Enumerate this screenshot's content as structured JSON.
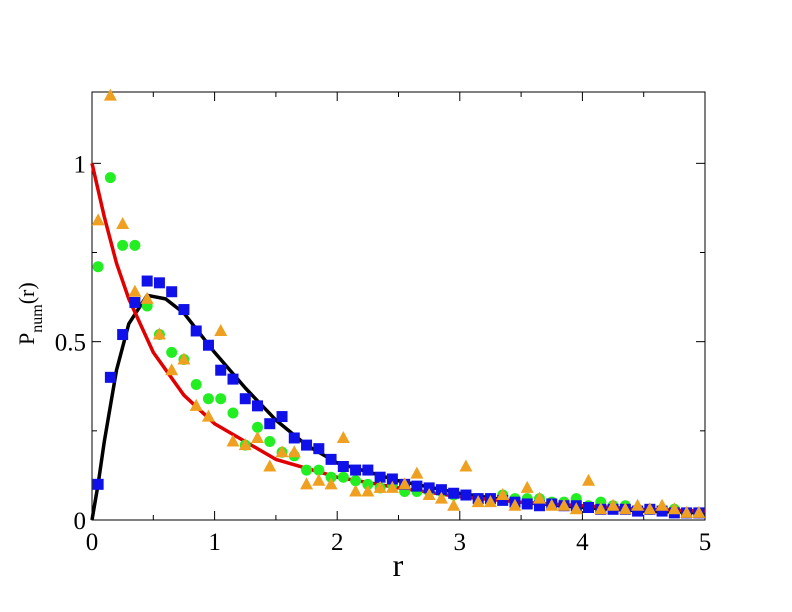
{
  "chart_data": {
    "type": "scatter",
    "xlabel": "r",
    "ylabel": {
      "main": "P",
      "sub": "num",
      "suffix": "(r)"
    },
    "xlim": [
      0,
      5
    ],
    "ylim": [
      0,
      1.2
    ],
    "xticks": [
      0,
      1,
      2,
      3,
      4,
      5
    ],
    "yticks": [
      0,
      0.5,
      1
    ],
    "xticks_minor": [
      0.5,
      1.5,
      2.5,
      3.5,
      4.5
    ],
    "yticks_minor": [
      0.25,
      0.75
    ],
    "series": [
      {
        "marker": "line",
        "color": "#000000",
        "x": [
          0,
          0.05,
          0.1,
          0.2,
          0.3,
          0.45,
          0.6,
          0.75,
          1,
          1.25,
          1.5,
          1.75,
          2,
          2.5,
          3,
          3.5,
          4,
          4.5,
          5
        ],
        "values": [
          0,
          0.1,
          0.22,
          0.42,
          0.55,
          0.63,
          0.62,
          0.58,
          0.47,
          0.37,
          0.28,
          0.21,
          0.16,
          0.11,
          0.075,
          0.05,
          0.035,
          0.025,
          0.02
        ]
      },
      {
        "marker": "line",
        "color": "#e00000",
        "x": [
          0,
          0.1,
          0.2,
          0.3,
          0.5,
          0.75,
          1,
          1.5,
          2,
          2.5,
          3,
          3.5,
          4,
          4.5,
          5
        ],
        "values": [
          1,
          0.85,
          0.72,
          0.62,
          0.47,
          0.35,
          0.27,
          0.17,
          0.12,
          0.09,
          0.065,
          0.05,
          0.04,
          0.03,
          0.025
        ]
      },
      {
        "marker": "circle",
        "color": "#22ee22",
        "x": [
          0.05,
          0.15,
          0.25,
          0.35,
          0.45,
          0.55,
          0.65,
          0.75,
          0.85,
          0.95,
          1.05,
          1.15,
          1.25,
          1.35,
          1.45,
          1.55,
          1.65,
          1.75,
          1.85,
          1.95,
          2.05,
          2.15,
          2.25,
          2.35,
          2.45,
          2.55,
          2.65,
          2.75,
          2.85,
          2.95,
          3.05,
          3.15,
          3.25,
          3.35,
          3.45,
          3.55,
          3.65,
          3.75,
          3.85,
          3.95,
          4.05,
          4.15,
          4.25,
          4.35,
          4.45,
          4.55,
          4.65,
          4.75,
          4.85,
          4.95
        ],
        "values": [
          0.71,
          0.96,
          0.77,
          0.77,
          0.6,
          0.52,
          0.47,
          0.45,
          0.38,
          0.34,
          0.34,
          0.3,
          0.21,
          0.26,
          0.22,
          0.19,
          0.18,
          0.14,
          0.14,
          0.12,
          0.12,
          0.11,
          0.1,
          0.09,
          0.1,
          0.08,
          0.08,
          0.08,
          0.08,
          0.07,
          0.07,
          0.06,
          0.06,
          0.07,
          0.06,
          0.06,
          0.06,
          0.05,
          0.05,
          0.06,
          0.04,
          0.05,
          0.04,
          0.04,
          0.03,
          0.03,
          0.03,
          0.03,
          0.02,
          0.02
        ]
      },
      {
        "marker": "square",
        "color": "#1010e8",
        "x": [
          0.05,
          0.15,
          0.25,
          0.35,
          0.45,
          0.55,
          0.65,
          0.75,
          0.85,
          0.95,
          1.05,
          1.15,
          1.25,
          1.35,
          1.45,
          1.55,
          1.65,
          1.75,
          1.85,
          1.95,
          2.05,
          2.15,
          2.25,
          2.35,
          2.45,
          2.55,
          2.65,
          2.75,
          2.85,
          2.95,
          3.05,
          3.15,
          3.25,
          3.35,
          3.45,
          3.55,
          3.65,
          3.75,
          3.85,
          3.95,
          4.05,
          4.15,
          4.25,
          4.35,
          4.45,
          4.55,
          4.65,
          4.75,
          4.85,
          4.95
        ],
        "values": [
          0.1,
          0.4,
          0.52,
          0.61,
          0.67,
          0.665,
          0.64,
          0.59,
          0.53,
          0.49,
          0.42,
          0.395,
          0.34,
          0.32,
          0.27,
          0.29,
          0.23,
          0.21,
          0.2,
          0.17,
          0.15,
          0.14,
          0.14,
          0.12,
          0.115,
          0.1,
          0.095,
          0.09,
          0.085,
          0.075,
          0.07,
          0.06,
          0.06,
          0.055,
          0.05,
          0.045,
          0.04,
          0.045,
          0.04,
          0.04,
          0.035,
          0.03,
          0.03,
          0.03,
          0.025,
          0.03,
          0.025,
          0.02,
          0.02,
          0.02
        ]
      },
      {
        "marker": "triangle",
        "color": "#f0a020",
        "x": [
          0.05,
          0.15,
          0.25,
          0.35,
          0.45,
          0.55,
          0.65,
          0.75,
          0.85,
          0.95,
          1.05,
          1.15,
          1.25,
          1.35,
          1.45,
          1.55,
          1.65,
          1.75,
          1.85,
          1.95,
          2.05,
          2.15,
          2.25,
          2.35,
          2.45,
          2.55,
          2.65,
          2.75,
          2.85,
          2.95,
          3.05,
          3.15,
          3.25,
          3.35,
          3.45,
          3.55,
          3.65,
          3.75,
          3.85,
          3.95,
          4.05,
          4.15,
          4.25,
          4.35,
          4.45,
          4.55,
          4.65,
          4.75,
          4.85,
          4.95
        ],
        "values": [
          0.84,
          1.19,
          0.83,
          0.64,
          0.62,
          0.52,
          0.42,
          0.45,
          0.32,
          0.29,
          0.53,
          0.22,
          0.21,
          0.23,
          0.15,
          0.19,
          0.19,
          0.1,
          0.11,
          0.1,
          0.23,
          0.08,
          0.08,
          0.09,
          0.09,
          0.1,
          0.13,
          0.07,
          0.06,
          0.04,
          0.15,
          0.05,
          0.05,
          0.07,
          0.04,
          0.09,
          0.06,
          0.04,
          0.04,
          0.03,
          0.11,
          0.03,
          0.04,
          0.03,
          0.04,
          0.03,
          0.04,
          0.03,
          0.02,
          0.02
        ]
      }
    ]
  }
}
